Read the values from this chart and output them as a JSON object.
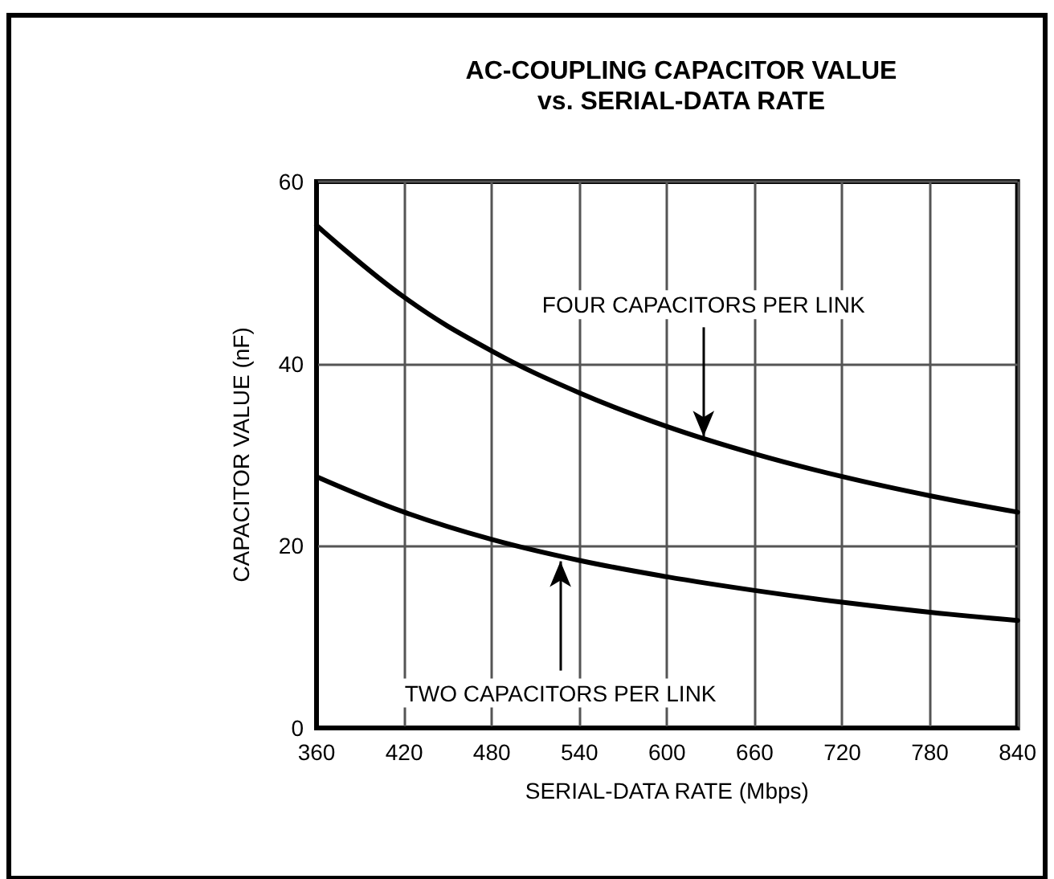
{
  "chart_data": {
    "type": "line",
    "title": "AC-COUPLING CAPACITOR VALUE\nvs. SERIAL-DATA RATE",
    "xlabel": "SERIAL-DATA RATE (Mbps)",
    "ylabel": "CAPACITOR VALUE (nF)",
    "x": [
      360,
      420,
      480,
      540,
      600,
      660,
      720,
      780,
      840
    ],
    "series": [
      {
        "color": "#000000",
        "values": [
          55.2,
          47.3,
          41.4,
          36.8,
          33.1,
          30.1,
          27.6,
          25.5,
          23.7
        ]
      },
      {
        "color": "#000000",
        "values": [
          27.6,
          23.7,
          20.7,
          18.4,
          16.6,
          15.1,
          13.8,
          12.7,
          11.8
        ]
      }
    ],
    "annotations": [
      {
        "text": "FOUR CAPACITORS PER LINK",
        "x": 625,
        "y": 32
      },
      {
        "text": "TWO CAPACITORS PER LINK",
        "x": 527,
        "y": 18.3
      }
    ],
    "xlim": [
      360,
      840
    ],
    "xticks": [
      360,
      420,
      480,
      540,
      600,
      660,
      720,
      780,
      840
    ],
    "ylim": [
      0,
      60
    ],
    "yticks": [
      0,
      20,
      40,
      60
    ],
    "grid": true,
    "marker": "none",
    "line_style": "solid"
  }
}
